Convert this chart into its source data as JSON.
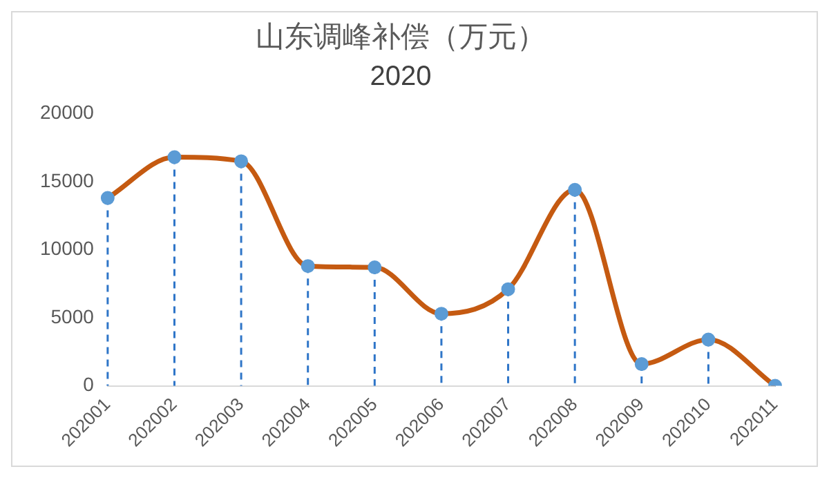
{
  "chart_data": {
    "type": "line",
    "title": "山东调峰补偿（万元）",
    "subtitle": "2020",
    "categories": [
      "202001",
      "202002",
      "202003",
      "202004",
      "202005",
      "202006",
      "202007",
      "202008",
      "202009",
      "202010",
      "202011"
    ],
    "series": [
      {
        "color": "#c55a11",
        "marker": "none",
        "line_style": "solid",
        "values": [
          13800,
          16800,
          16500,
          8800,
          8700,
          5300,
          7100,
          14400,
          1600,
          3400,
          0
        ]
      },
      {
        "type": "lollipop",
        "color": "#5b9bd5",
        "marker": "circle",
        "line_style": "dashed",
        "values": [
          13800,
          16800,
          16500,
          8800,
          8700,
          5300,
          7100,
          14400,
          1600,
          3400,
          0
        ]
      }
    ],
    "ylim": [
      0,
      20000
    ],
    "yticks": [
      0,
      5000,
      10000,
      15000,
      20000
    ],
    "grid": false,
    "legend": false
  }
}
